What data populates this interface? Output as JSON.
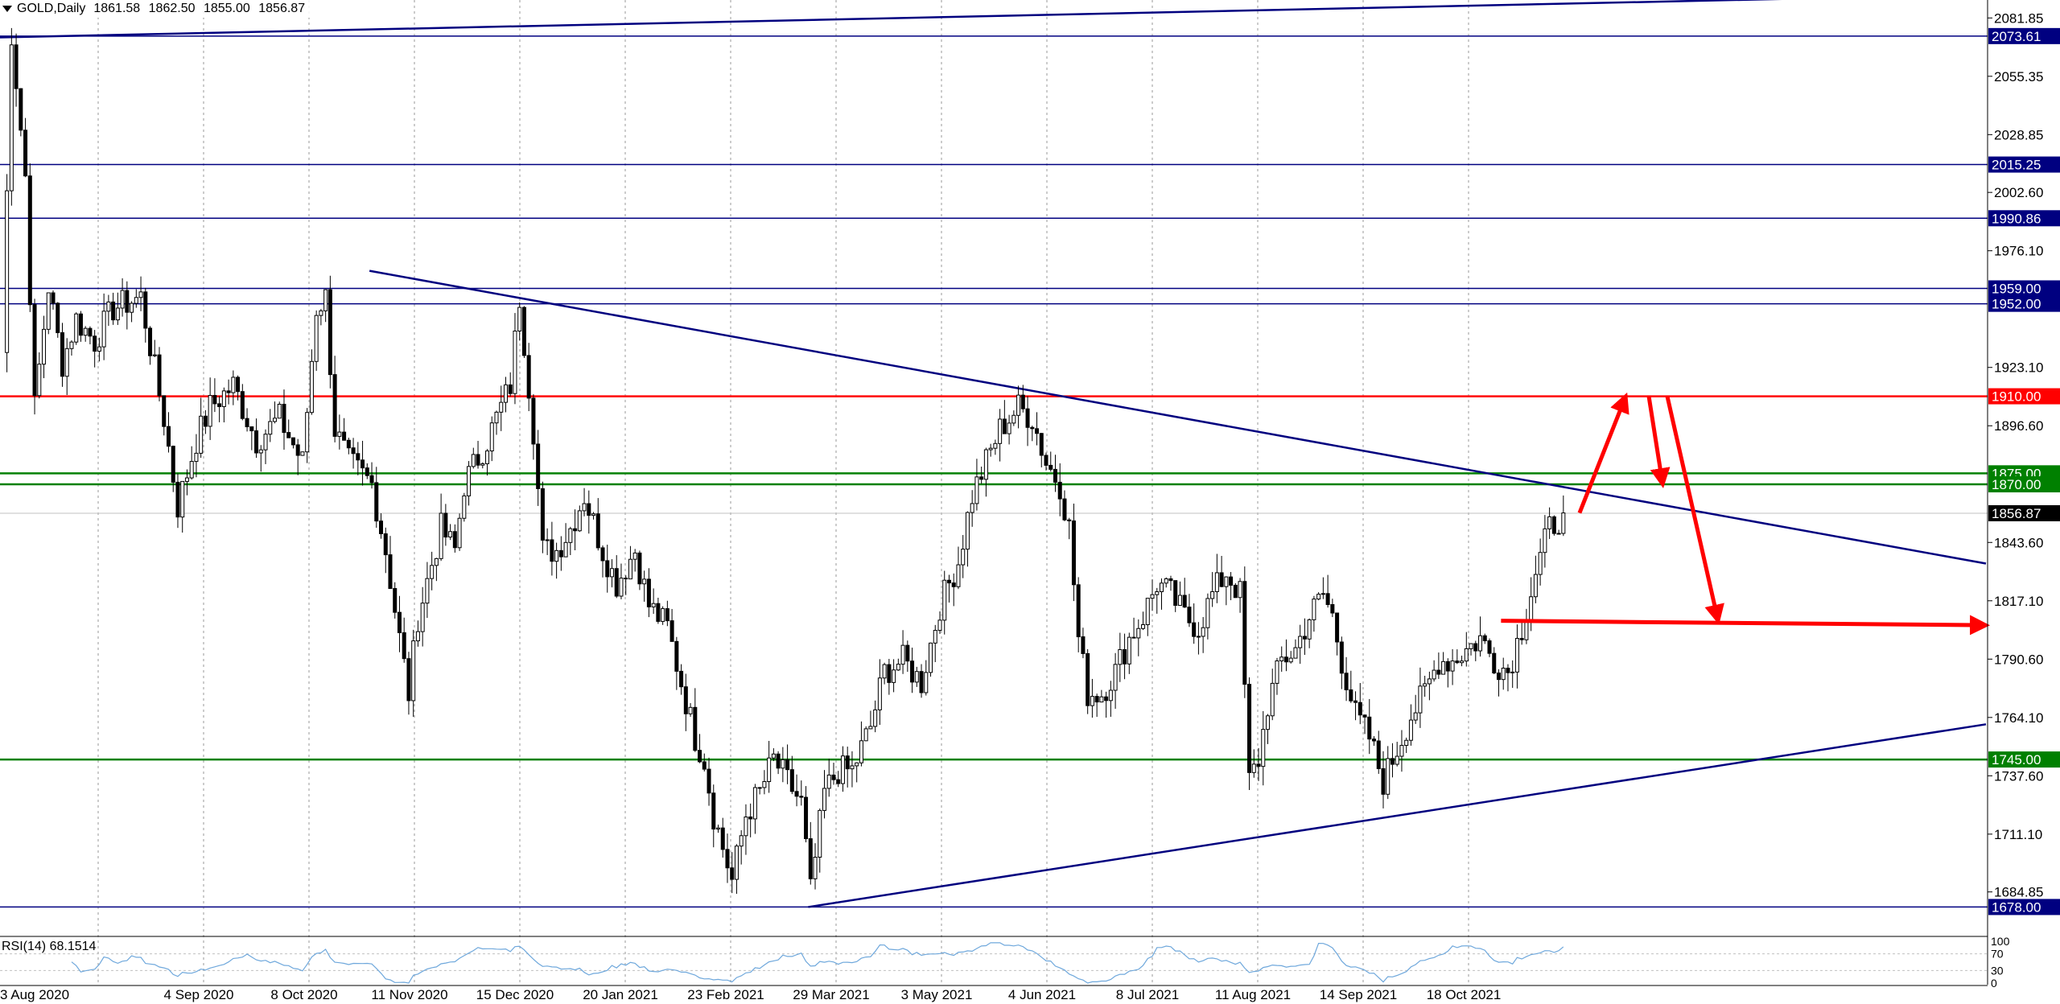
{
  "header": {
    "symbol_timeframe": "GOLD,Daily",
    "open": "1861.58",
    "high": "1862.50",
    "low": "1855.00",
    "close": "1856.87"
  },
  "rsi": {
    "label": "RSI(14) 68.1514",
    "levels": [
      "100",
      "70",
      "30",
      "0"
    ]
  },
  "colors": {
    "background": "#ffffff",
    "candle": "#000000",
    "trendline": "#00007f",
    "level_navy": "#000080",
    "level_red": "#ff0000",
    "level_green": "#008000",
    "arrow": "#ff0000",
    "current_price_bg": "#000000",
    "rsi_line": "#6fa8dc"
  },
  "chart_data": {
    "type": "candlestick",
    "title": "GOLD,Daily",
    "ylim": [
      1665,
      2090
    ],
    "y_tick_labels": [
      "2081.85",
      "2055.35",
      "2028.85",
      "2002.60",
      "1976.10",
      "1923.10",
      "1896.60",
      "1843.60",
      "1817.10",
      "1790.60",
      "1764.10",
      "1737.60",
      "1711.10",
      "1684.85"
    ],
    "x_tick_labels": [
      "3 Aug 2020",
      "4 Sep 2020",
      "8 Oct 2020",
      "11 Nov 2020",
      "15 Dec 2020",
      "20 Jan 2021",
      "23 Feb 2021",
      "29 Mar 2021",
      "3 May 2021",
      "4 Jun 2021",
      "8 Jul 2021",
      "11 Aug 2021",
      "14 Sep 2021",
      "18 Oct 2021"
    ],
    "current_price": "1856.87",
    "horizontal_levels": [
      {
        "value": 2073.61,
        "label": "2073.61",
        "color": "navy"
      },
      {
        "value": 2015.25,
        "label": "2015.25",
        "color": "navy"
      },
      {
        "value": 1990.86,
        "label": "1990.86",
        "color": "navy"
      },
      {
        "value": 1959.0,
        "label": "1959.00",
        "color": "navy"
      },
      {
        "value": 1952.0,
        "label": "1952.00",
        "color": "navy"
      },
      {
        "value": 1910.0,
        "label": "1910.00",
        "color": "red"
      },
      {
        "value": 1875.0,
        "label": "1875.00",
        "color": "green"
      },
      {
        "value": 1870.0,
        "label": "1870.00",
        "color": "green"
      },
      {
        "value": 1745.0,
        "label": "1745.00",
        "color": "green"
      },
      {
        "value": 1678.0,
        "label": "1678.00",
        "color": "navy"
      }
    ],
    "trendlines": [
      {
        "name": "upper-long",
        "from": {
          "bar": 0,
          "price": 2073
        },
        "to": {
          "bar": 420,
          "price": 2092
        }
      },
      {
        "name": "descending",
        "from": {
          "bar": 80,
          "price": 1967
        },
        "to": {
          "bar": 430,
          "price": 1834
        }
      },
      {
        "name": "ascending",
        "from": {
          "bar": 175,
          "price": 1678
        },
        "to": {
          "bar": 430,
          "price": 1761
        }
      }
    ],
    "projection_arrows": [
      {
        "from": {
          "bar": 342,
          "price": 1857
        },
        "to": {
          "bar": 352,
          "price": 1910
        }
      },
      {
        "from": {
          "bar": 357,
          "price": 1910
        },
        "to": {
          "bar": 360,
          "price": 1870
        }
      },
      {
        "from": {
          "bar": 361,
          "price": 1910
        },
        "to": {
          "bar": 372,
          "price": 1808
        }
      },
      {
        "from": {
          "bar": 325,
          "price": 1808
        },
        "to": {
          "bar": 430,
          "price": 1806
        }
      }
    ],
    "price_path": [
      [
        0,
        1930
      ],
      [
        2,
        2075
      ],
      [
        5,
        2010
      ],
      [
        7,
        1905
      ],
      [
        10,
        1960
      ],
      [
        13,
        1925
      ],
      [
        16,
        1945
      ],
      [
        20,
        1935
      ],
      [
        24,
        1950
      ],
      [
        30,
        1955
      ],
      [
        35,
        1900
      ],
      [
        38,
        1860
      ],
      [
        42,
        1890
      ],
      [
        45,
        1905
      ],
      [
        50,
        1915
      ],
      [
        55,
        1890
      ],
      [
        60,
        1900
      ],
      [
        65,
        1880
      ],
      [
        68,
        1950
      ],
      [
        70,
        1955
      ],
      [
        72,
        1895
      ],
      [
        75,
        1880
      ],
      [
        80,
        1870
      ],
      [
        83,
        1840
      ],
      [
        86,
        1800
      ],
      [
        88,
        1775
      ],
      [
        90,
        1810
      ],
      [
        95,
        1850
      ],
      [
        98,
        1840
      ],
      [
        100,
        1870
      ],
      [
        105,
        1890
      ],
      [
        110,
        1915
      ],
      [
        112,
        1955
      ],
      [
        115,
        1895
      ],
      [
        117,
        1840
      ],
      [
        120,
        1840
      ],
      [
        123,
        1850
      ],
      [
        126,
        1865
      ],
      [
        130,
        1840
      ],
      [
        133,
        1825
      ],
      [
        137,
        1840
      ],
      [
        140,
        1815
      ],
      [
        144,
        1805
      ],
      [
        147,
        1780
      ],
      [
        150,
        1755
      ],
      [
        152,
        1745
      ],
      [
        154,
        1720
      ],
      [
        156,
        1705
      ],
      [
        158,
        1690
      ],
      [
        161,
        1720
      ],
      [
        164,
        1730
      ],
      [
        167,
        1745
      ],
      [
        170,
        1735
      ],
      [
        173,
        1725
      ],
      [
        175,
        1685
      ],
      [
        178,
        1730
      ],
      [
        181,
        1740
      ],
      [
        184,
        1740
      ],
      [
        188,
        1760
      ],
      [
        191,
        1785
      ],
      [
        195,
        1790
      ],
      [
        199,
        1780
      ],
      [
        203,
        1815
      ],
      [
        207,
        1835
      ],
      [
        210,
        1865
      ],
      [
        213,
        1880
      ],
      [
        216,
        1895
      ],
      [
        220,
        1905
      ],
      [
        223,
        1900
      ],
      [
        226,
        1880
      ],
      [
        229,
        1870
      ],
      [
        231,
        1850
      ],
      [
        233,
        1800
      ],
      [
        235,
        1775
      ],
      [
        238,
        1775
      ],
      [
        241,
        1785
      ],
      [
        244,
        1800
      ],
      [
        247,
        1810
      ],
      [
        250,
        1825
      ],
      [
        253,
        1820
      ],
      [
        256,
        1810
      ],
      [
        259,
        1805
      ],
      [
        262,
        1820
      ],
      [
        265,
        1830
      ],
      [
        268,
        1820
      ],
      [
        270,
        1735
      ],
      [
        272,
        1745
      ],
      [
        274,
        1770
      ],
      [
        277,
        1790
      ],
      [
        280,
        1795
      ],
      [
        283,
        1810
      ],
      [
        286,
        1820
      ],
      [
        288,
        1810
      ],
      [
        290,
        1790
      ],
      [
        293,
        1765
      ],
      [
        296,
        1755
      ],
      [
        299,
        1735
      ],
      [
        302,
        1750
      ],
      [
        305,
        1765
      ],
      [
        308,
        1775
      ],
      [
        311,
        1790
      ],
      [
        314,
        1790
      ],
      [
        317,
        1795
      ],
      [
        320,
        1800
      ],
      [
        323,
        1790
      ],
      [
        326,
        1785
      ],
      [
        329,
        1805
      ],
      [
        332,
        1830
      ],
      [
        335,
        1850
      ],
      [
        338,
        1857
      ]
    ]
  }
}
